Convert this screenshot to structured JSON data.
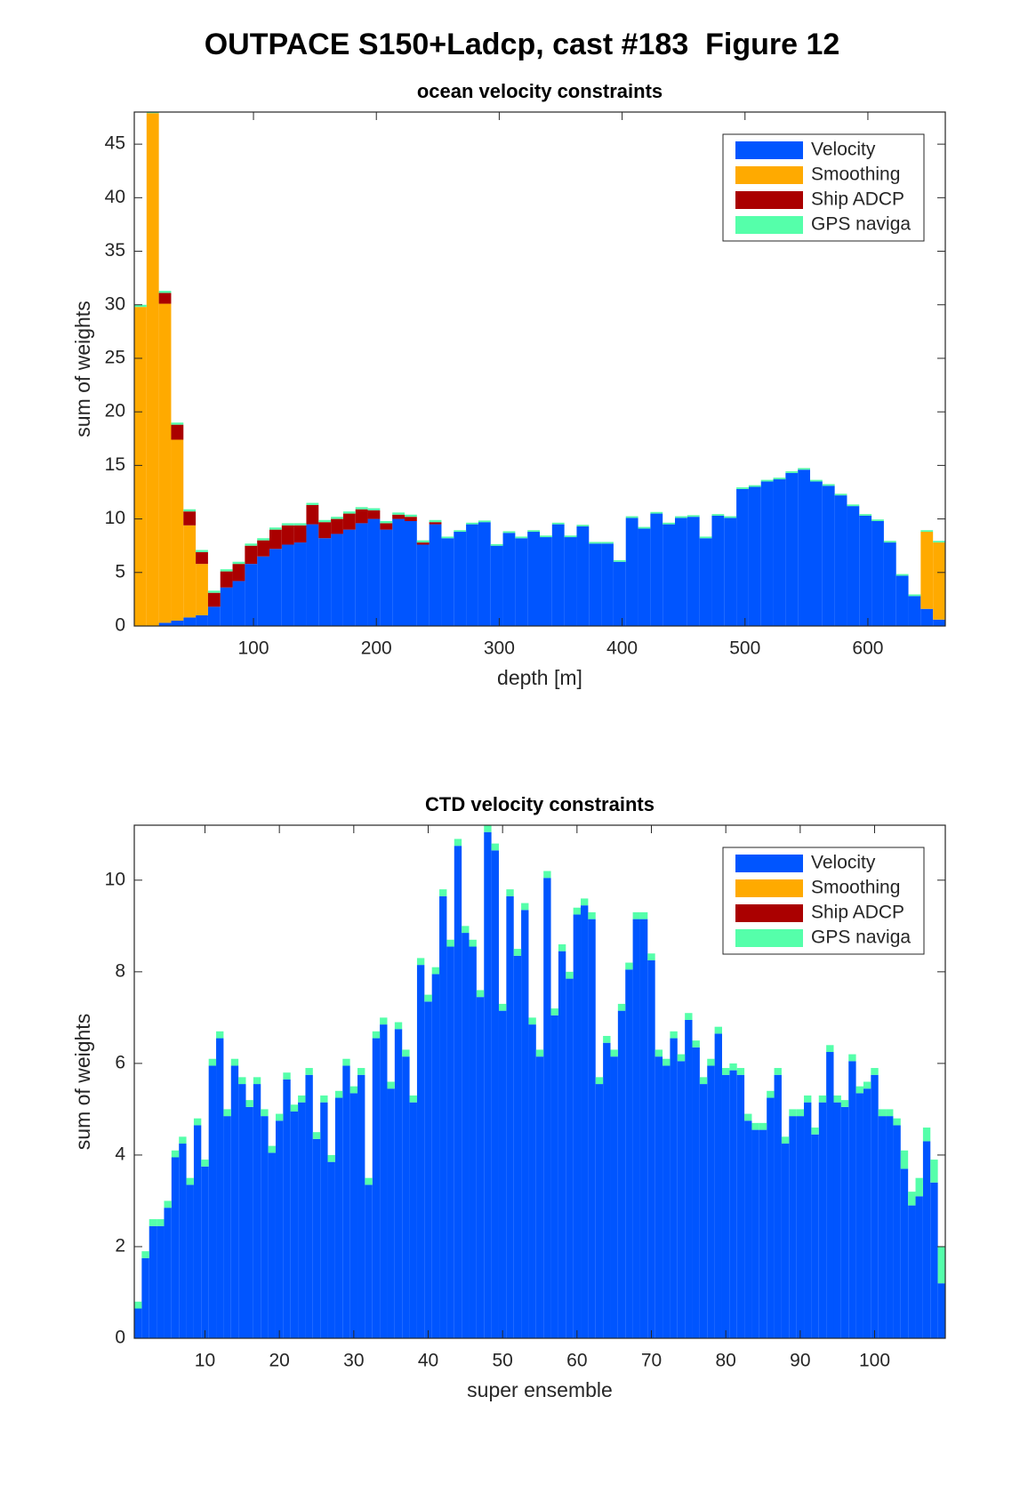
{
  "title": "OUTPACE S150+Ladcp, cast #183  Figure 12",
  "chart_data": [
    {
      "type": "bar",
      "stacked": true,
      "title": "ocean velocity constraints",
      "xlabel": "depth [m]",
      "ylabel": "sum of weights",
      "x": [
        8,
        18,
        28,
        38,
        48,
        58,
        68,
        78,
        88,
        98,
        108,
        118,
        128,
        138,
        148,
        158,
        168,
        178,
        188,
        198,
        208,
        218,
        228,
        238,
        248,
        258,
        268,
        278,
        288,
        298,
        308,
        318,
        328,
        338,
        348,
        358,
        368,
        378,
        388,
        398,
        408,
        418,
        428,
        438,
        448,
        458,
        468,
        478,
        488,
        498,
        508,
        518,
        528,
        538,
        548,
        558,
        568,
        578,
        588,
        598,
        608,
        618,
        628,
        638,
        648,
        658
      ],
      "xlim": [
        3,
        663
      ],
      "xticks": [
        100,
        200,
        300,
        400,
        500,
        600
      ],
      "ylim": [
        0,
        48
      ],
      "yticks": [
        0,
        5,
        10,
        15,
        20,
        25,
        30,
        35,
        40,
        45
      ],
      "legend": "upper right",
      "series": [
        {
          "name": "Velocity",
          "color": "#0055ff",
          "values": [
            0,
            0,
            0.3,
            0.5,
            0.8,
            1.0,
            1.8,
            3.6,
            4.2,
            5.8,
            6.5,
            7.2,
            7.6,
            7.8,
            9.5,
            8.2,
            8.6,
            9.0,
            9.6,
            10.0,
            9.0,
            10.0,
            9.8,
            7.6,
            9.5,
            8.2,
            8.8,
            9.5,
            9.7,
            7.5,
            8.7,
            8.2,
            8.8,
            8.3,
            9.5,
            8.3,
            9.3,
            7.7,
            7.7,
            6.0,
            10.1,
            9.1,
            10.5,
            9.5,
            10.1,
            10.2,
            8.2,
            10.3,
            10.1,
            12.8,
            13.0,
            13.5,
            13.7,
            14.3,
            14.6,
            13.5,
            13.1,
            12.2,
            11.2,
            10.3,
            9.8,
            7.8,
            4.7,
            2.8,
            1.6,
            0.6
          ]
        },
        {
          "name": "Smoothing",
          "color": "#ffaa00",
          "values": [
            29.8,
            47.9,
            29.8,
            16.9,
            8.6,
            4.8,
            0,
            0,
            0,
            0,
            0,
            0,
            0,
            0,
            0,
            0,
            0,
            0,
            0,
            0,
            0,
            0,
            0,
            0,
            0,
            0,
            0,
            0,
            0,
            0,
            0,
            0,
            0,
            0,
            0,
            0,
            0,
            0,
            0,
            0,
            0,
            0,
            0,
            0,
            0,
            0,
            0,
            0,
            0,
            0,
            0,
            0,
            0,
            0,
            0,
            0,
            0,
            0,
            0,
            0,
            0,
            0,
            0,
            0,
            7.2,
            7.2
          ]
        },
        {
          "name": "Ship ADCP",
          "color": "#aa0000",
          "values": [
            0,
            0,
            1.0,
            1.4,
            1.3,
            1.1,
            1.3,
            1.5,
            1.6,
            1.7,
            1.5,
            1.8,
            1.8,
            1.6,
            1.8,
            1.5,
            1.4,
            1.5,
            1.3,
            0.8,
            0.6,
            0.4,
            0.4,
            0.2,
            0.2,
            0,
            0,
            0,
            0,
            0,
            0,
            0,
            0,
            0,
            0,
            0,
            0,
            0,
            0,
            0,
            0,
            0,
            0,
            0,
            0,
            0,
            0,
            0,
            0,
            0,
            0,
            0,
            0,
            0,
            0,
            0,
            0,
            0,
            0,
            0,
            0,
            0,
            0,
            0,
            0,
            0
          ]
        },
        {
          "name": "GPS naviga",
          "color": "#55ffaa",
          "values": [
            0.2,
            0.2,
            0.2,
            0.2,
            0.2,
            0.2,
            0.2,
            0.2,
            0.2,
            0.2,
            0.2,
            0.2,
            0.2,
            0.2,
            0.2,
            0.2,
            0.2,
            0.2,
            0.2,
            0.2,
            0.2,
            0.2,
            0.2,
            0.2,
            0.2,
            0.15,
            0.15,
            0.15,
            0.15,
            0.15,
            0.15,
            0.15,
            0.15,
            0.15,
            0.15,
            0.15,
            0.15,
            0.15,
            0.15,
            0.15,
            0.15,
            0.15,
            0.15,
            0.15,
            0.15,
            0.15,
            0.15,
            0.15,
            0.15,
            0.15,
            0.15,
            0.15,
            0.15,
            0.15,
            0.15,
            0.15,
            0.15,
            0.15,
            0.15,
            0.15,
            0.15,
            0.15,
            0.15,
            0.15,
            0.15,
            0.15
          ]
        }
      ]
    },
    {
      "type": "bar",
      "stacked": true,
      "title": "CTD velocity constraints",
      "xlabel": "super ensemble",
      "ylabel": "sum of weights",
      "x": [
        1,
        2,
        3,
        4,
        5,
        6,
        7,
        8,
        9,
        10,
        11,
        12,
        13,
        14,
        15,
        16,
        17,
        18,
        19,
        20,
        21,
        22,
        23,
        24,
        25,
        26,
        27,
        28,
        29,
        30,
        31,
        32,
        33,
        34,
        35,
        36,
        37,
        38,
        39,
        40,
        41,
        42,
        43,
        44,
        45,
        46,
        47,
        48,
        49,
        50,
        51,
        52,
        53,
        54,
        55,
        56,
        57,
        58,
        59,
        60,
        61,
        62,
        63,
        64,
        65,
        66,
        67,
        68,
        69,
        70,
        71,
        72,
        73,
        74,
        75,
        76,
        77,
        78,
        79,
        80,
        81,
        82,
        83,
        84,
        85,
        86,
        87,
        88,
        89,
        90,
        91,
        92,
        93,
        94,
        95,
        96,
        97,
        98,
        99,
        100,
        101,
        102,
        103,
        104,
        105,
        106,
        107,
        108,
        109
      ],
      "xlim": [
        0.5,
        109.5
      ],
      "xticks": [
        10,
        20,
        30,
        40,
        50,
        60,
        70,
        80,
        90,
        100
      ],
      "ylim": [
        0,
        11.2
      ],
      "yticks": [
        0,
        2,
        4,
        6,
        8,
        10
      ],
      "legend": "upper right",
      "series": [
        {
          "name": "Velocity",
          "color": "#0055ff",
          "values": [
            0.65,
            1.75,
            2.45,
            2.45,
            2.85,
            3.95,
            4.25,
            3.35,
            4.65,
            3.75,
            5.95,
            6.55,
            4.85,
            5.95,
            5.55,
            5.05,
            5.55,
            4.85,
            4.05,
            4.75,
            5.65,
            4.95,
            5.15,
            5.75,
            4.35,
            5.15,
            3.85,
            5.25,
            5.95,
            5.35,
            5.75,
            3.35,
            6.55,
            6.85,
            5.45,
            6.75,
            6.15,
            5.15,
            8.15,
            7.35,
            7.95,
            9.65,
            8.55,
            10.75,
            8.85,
            8.55,
            7.45,
            11.05,
            10.65,
            7.15,
            9.65,
            8.35,
            9.35,
            6.85,
            6.15,
            10.05,
            7.05,
            8.45,
            7.85,
            9.25,
            9.45,
            9.15,
            5.55,
            6.45,
            6.15,
            7.15,
            8.05,
            9.15,
            9.15,
            8.25,
            6.15,
            5.95,
            6.55,
            6.05,
            6.95,
            6.35,
            5.55,
            5.95,
            6.65,
            5.75,
            5.85,
            5.75,
            4.75,
            4.55,
            4.55,
            5.25,
            5.75,
            4.25,
            4.85,
            4.85,
            5.15,
            4.45,
            5.15,
            6.25,
            5.15,
            5.05,
            6.05,
            5.35,
            5.45,
            5.75,
            4.85,
            4.85,
            4.65,
            3.7,
            2.9,
            3.1,
            4.3,
            3.4,
            1.2
          ]
        },
        {
          "name": "Smoothing",
          "color": "#ffaa00",
          "values": [
            0,
            0,
            0,
            0,
            0,
            0,
            0,
            0,
            0,
            0,
            0,
            0,
            0,
            0,
            0,
            0,
            0,
            0,
            0,
            0,
            0,
            0,
            0,
            0,
            0,
            0,
            0,
            0,
            0,
            0,
            0,
            0,
            0,
            0,
            0,
            0,
            0,
            0,
            0,
            0,
            0,
            0,
            0,
            0,
            0,
            0,
            0,
            0,
            0,
            0,
            0,
            0,
            0,
            0,
            0,
            0,
            0,
            0,
            0,
            0,
            0,
            0,
            0,
            0,
            0,
            0,
            0,
            0,
            0,
            0,
            0,
            0,
            0,
            0,
            0,
            0,
            0,
            0,
            0,
            0,
            0,
            0,
            0,
            0,
            0,
            0,
            0,
            0,
            0,
            0,
            0,
            0,
            0,
            0,
            0,
            0,
            0,
            0,
            0,
            0,
            0,
            0,
            0,
            0,
            0,
            0,
            0,
            0,
            0
          ]
        },
        {
          "name": "Ship ADCP",
          "color": "#aa0000",
          "values": [
            0,
            0,
            0,
            0,
            0,
            0,
            0,
            0,
            0,
            0,
            0,
            0,
            0,
            0,
            0,
            0,
            0,
            0,
            0,
            0,
            0,
            0,
            0,
            0,
            0,
            0,
            0,
            0,
            0,
            0,
            0,
            0,
            0,
            0,
            0,
            0,
            0,
            0,
            0,
            0,
            0,
            0,
            0,
            0,
            0,
            0,
            0,
            0,
            0,
            0,
            0,
            0,
            0,
            0,
            0,
            0,
            0,
            0,
            0,
            0,
            0,
            0,
            0,
            0,
            0,
            0,
            0,
            0,
            0,
            0,
            0,
            0,
            0,
            0,
            0,
            0,
            0,
            0,
            0,
            0,
            0,
            0,
            0,
            0,
            0,
            0,
            0,
            0,
            0,
            0,
            0,
            0,
            0,
            0,
            0,
            0,
            0,
            0,
            0,
            0,
            0,
            0,
            0,
            0,
            0,
            0,
            0,
            0,
            0
          ]
        },
        {
          "name": "GPS naviga",
          "color": "#55ffaa",
          "values": [
            0.15,
            0.15,
            0.15,
            0.15,
            0.15,
            0.15,
            0.15,
            0.15,
            0.15,
            0.15,
            0.15,
            0.15,
            0.15,
            0.15,
            0.15,
            0.15,
            0.15,
            0.15,
            0.15,
            0.15,
            0.15,
            0.15,
            0.15,
            0.15,
            0.15,
            0.15,
            0.15,
            0.15,
            0.15,
            0.15,
            0.15,
            0.15,
            0.15,
            0.15,
            0.15,
            0.15,
            0.15,
            0.15,
            0.15,
            0.15,
            0.15,
            0.15,
            0.15,
            0.15,
            0.15,
            0.15,
            0.15,
            0.15,
            0.15,
            0.15,
            0.15,
            0.15,
            0.15,
            0.15,
            0.15,
            0.15,
            0.15,
            0.15,
            0.15,
            0.15,
            0.15,
            0.15,
            0.15,
            0.15,
            0.15,
            0.15,
            0.15,
            0.15,
            0.15,
            0.15,
            0.15,
            0.15,
            0.15,
            0.15,
            0.15,
            0.15,
            0.15,
            0.15,
            0.15,
            0.15,
            0.15,
            0.15,
            0.15,
            0.15,
            0.15,
            0.15,
            0.15,
            0.15,
            0.15,
            0.15,
            0.15,
            0.15,
            0.15,
            0.15,
            0.15,
            0.15,
            0.15,
            0.15,
            0.15,
            0.15,
            0.15,
            0.15,
            0.15,
            0.4,
            0.3,
            0.4,
            0.3,
            0.5,
            0.8
          ]
        }
      ]
    }
  ]
}
